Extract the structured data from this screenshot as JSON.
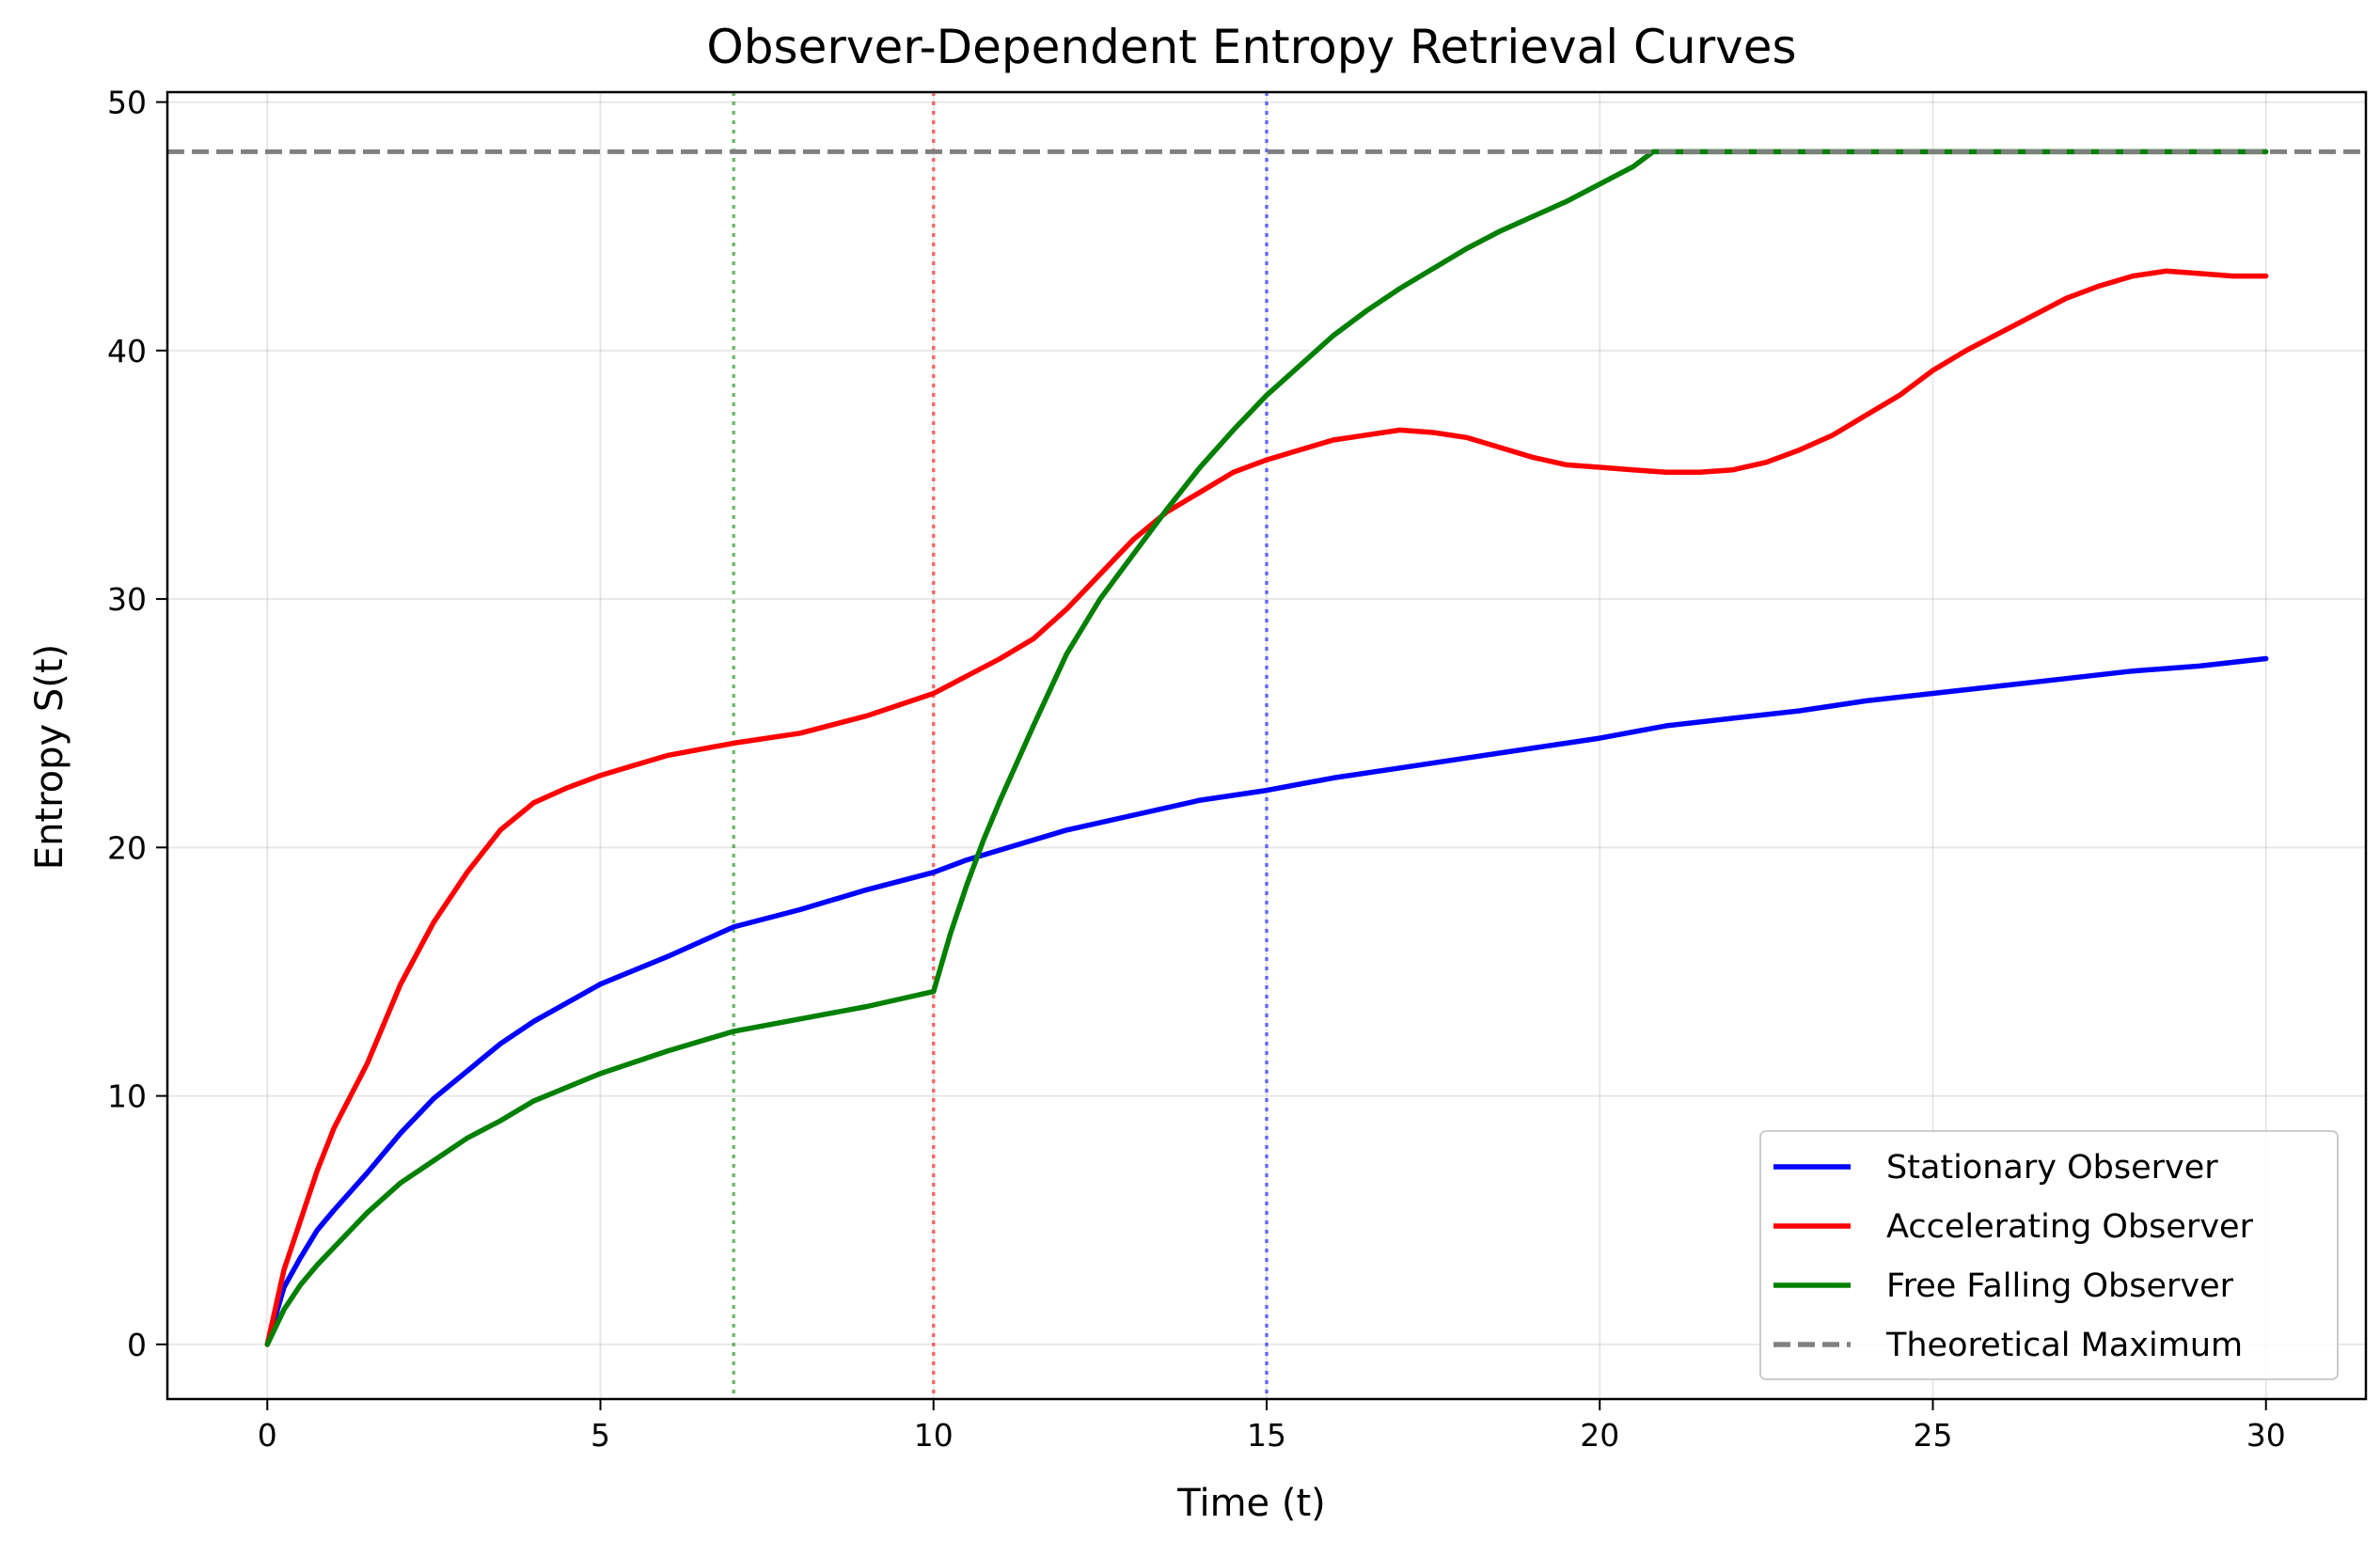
{
  "chart_data": {
    "type": "line",
    "title": "Observer-Dependent Entropy Retrieval Curves",
    "xlabel": "Time (t)",
    "ylabel": "Entropy S(t)",
    "xlim": [
      -1.5,
      31.5
    ],
    "ylim": [
      -2.2,
      50.4
    ],
    "xticks": [
      0,
      5,
      10,
      15,
      20,
      25,
      30
    ],
    "yticks": [
      0,
      10,
      20,
      30,
      40,
      50
    ],
    "grid": true,
    "legend_position": "lower-right",
    "series": [
      {
        "name": "Stationary Observer",
        "color": "#0000ff",
        "x": [
          0,
          0.25,
          0.5,
          0.75,
          1,
          1.5,
          2,
          2.5,
          3,
          3.5,
          4,
          5,
          6,
          7,
          8,
          9,
          10,
          10.5,
          11,
          12,
          13,
          14,
          15,
          16,
          17,
          18,
          19,
          20,
          21,
          22,
          23,
          24,
          25,
          26,
          27,
          28,
          29,
          30
        ],
        "y": [
          0,
          2.3,
          3.5,
          4.6,
          5.4,
          6.9,
          8.5,
          9.9,
          11.0,
          12.1,
          13.0,
          14.5,
          15.6,
          16.8,
          17.5,
          18.3,
          19.0,
          19.5,
          19.9,
          20.7,
          21.3,
          21.9,
          22.3,
          22.8,
          23.2,
          23.6,
          24.0,
          24.4,
          24.9,
          25.2,
          25.5,
          25.9,
          26.2,
          26.5,
          26.8,
          27.1,
          27.3,
          27.6
        ]
      },
      {
        "name": "Accelerating Observer",
        "color": "#ff0000",
        "x": [
          0,
          0.25,
          0.5,
          0.75,
          1,
          1.5,
          2,
          2.5,
          3,
          3.5,
          4,
          4.5,
          5,
          5.5,
          6,
          7,
          8,
          9,
          10,
          10.5,
          11,
          11.5,
          12,
          12.5,
          13,
          13.5,
          14,
          14.5,
          15,
          15.5,
          16,
          16.5,
          17,
          17.5,
          18,
          18.5,
          19,
          19.5,
          20,
          20.5,
          21,
          21.5,
          22,
          22.5,
          23,
          23.5,
          24,
          24.5,
          25,
          25.5,
          26,
          26.5,
          27,
          27.5,
          28,
          28.5,
          29,
          29.5,
          30
        ],
        "y": [
          0,
          3.0,
          5.0,
          7.0,
          8.7,
          11.3,
          14.5,
          17.0,
          19.0,
          20.7,
          21.8,
          22.4,
          22.9,
          23.3,
          23.7,
          24.2,
          24.6,
          25.3,
          26.2,
          26.9,
          27.6,
          28.4,
          29.6,
          31.0,
          32.4,
          33.5,
          34.3,
          35.1,
          35.6,
          36.0,
          36.4,
          36.6,
          36.8,
          36.7,
          36.5,
          36.1,
          35.7,
          35.4,
          35.3,
          35.2,
          35.1,
          35.1,
          35.2,
          35.5,
          36.0,
          36.6,
          37.4,
          38.2,
          39.2,
          40.0,
          40.7,
          41.4,
          42.1,
          42.6,
          43.0,
          43.2,
          43.1,
          43.0,
          43.0
        ]
      },
      {
        "name": "Free Falling Observer",
        "color": "#008000",
        "x": [
          0,
          0.25,
          0.5,
          0.75,
          1,
          1.5,
          2,
          2.5,
          3,
          3.5,
          4,
          5,
          6,
          7,
          8,
          9,
          9.5,
          10,
          10.25,
          10.5,
          10.75,
          11,
          11.5,
          12,
          12.5,
          13,
          13.5,
          14,
          14.5,
          15,
          15.5,
          16,
          16.5,
          17,
          17.5,
          18,
          18.5,
          19,
          19.5,
          20,
          20.5,
          20.8,
          21,
          22,
          23,
          24,
          25,
          26,
          27,
          28,
          29,
          30
        ],
        "y": [
          0,
          1.4,
          2.4,
          3.2,
          3.9,
          5.3,
          6.5,
          7.4,
          8.3,
          9.0,
          9.8,
          10.9,
          11.8,
          12.6,
          13.1,
          13.6,
          13.9,
          14.2,
          16.5,
          18.5,
          20.3,
          21.9,
          24.9,
          27.8,
          30.0,
          31.8,
          33.6,
          35.3,
          36.8,
          38.2,
          39.4,
          40.6,
          41.6,
          42.5,
          43.3,
          44.1,
          44.8,
          45.4,
          46.0,
          46.7,
          47.4,
          48.0,
          48.0,
          48.0,
          48.0,
          48.0,
          48.0,
          48.0,
          48.0,
          48.0,
          48.0,
          48.0
        ]
      },
      {
        "name": "Theoretical Maximum",
        "color": "#808080",
        "style": "dashed",
        "y": 48
      }
    ],
    "vertical_markers": [
      {
        "x": 7,
        "color": "#008000"
      },
      {
        "x": 10,
        "color": "#ff0000"
      },
      {
        "x": 15,
        "color": "#0000ff"
      }
    ]
  }
}
